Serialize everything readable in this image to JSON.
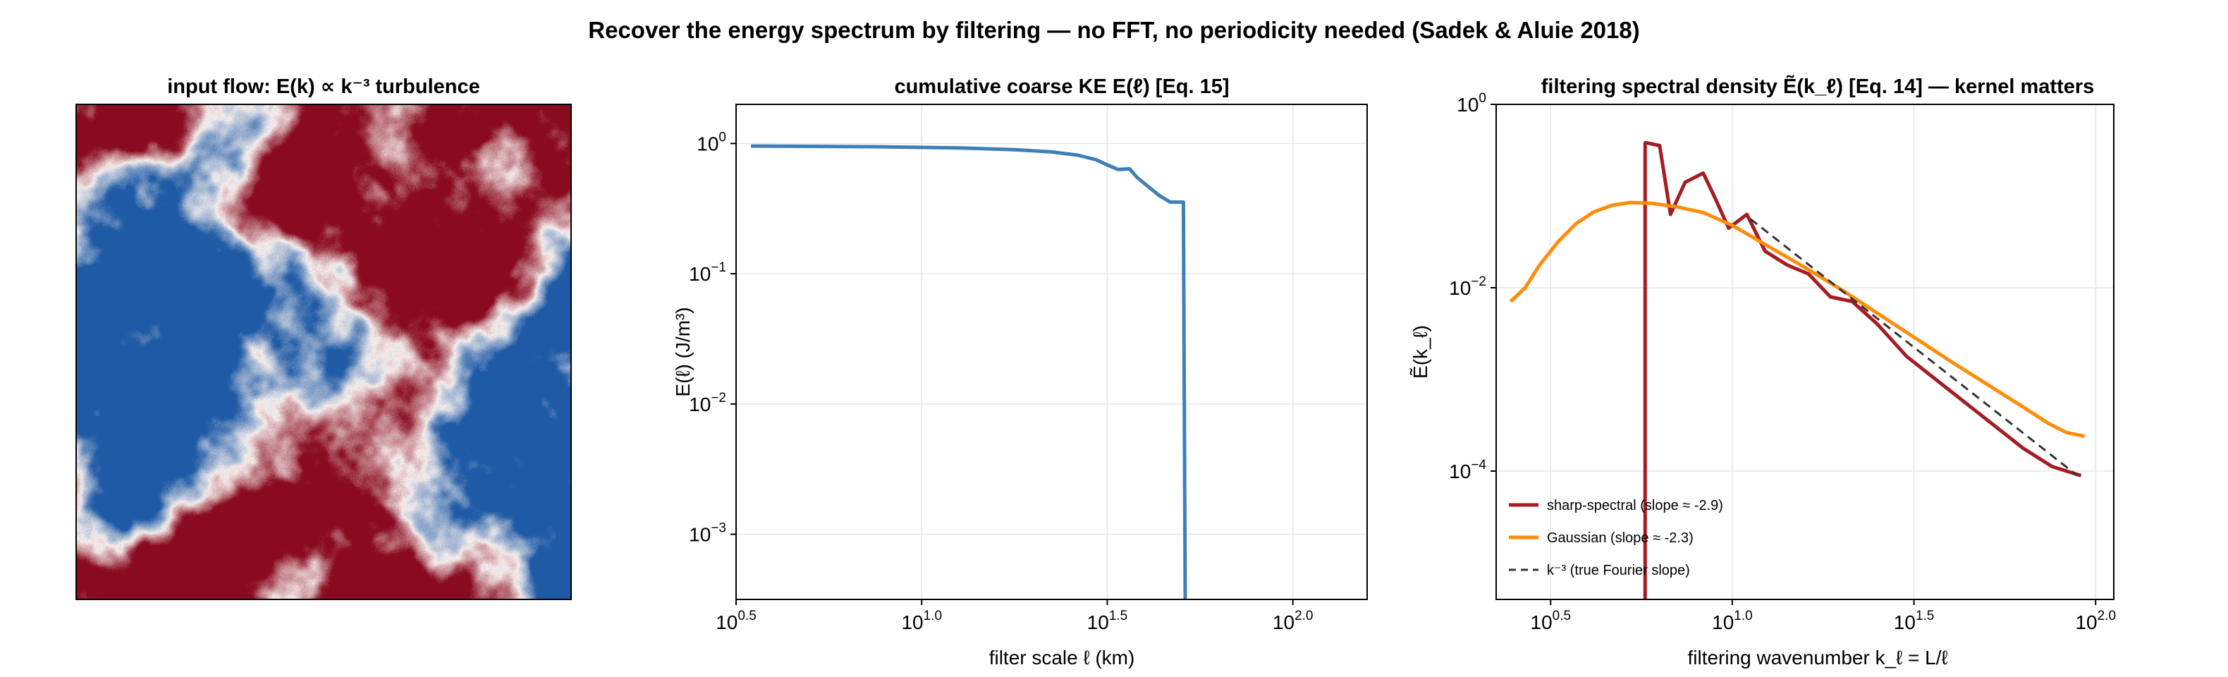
{
  "figure_title": "Recover the energy spectrum by filtering — no FFT, no periodicity needed (Sadek & Aluie 2018)",
  "colors": {
    "background": "#ffffff",
    "grid": "#e6e6e6",
    "axis": "#000000",
    "cumulative": "#3f7fb8",
    "sharp": "#a51c22",
    "gaussian": "#ff8c0a",
    "reference": "#333333",
    "field_red": "#8a0b1f",
    "field_blue": "#1e5aa6",
    "field_white": "#f7f0ee"
  },
  "chart_data": [
    {
      "type": "heatmap",
      "title": "input flow:  E(k) ∝ k⁻³ turbulence",
      "xlabel": "",
      "ylabel": "",
      "colormap": "diverging red-white-blue",
      "description_of_field": "random isotropic field with k^-3 spectrum"
    },
    {
      "type": "line",
      "title": "cumulative coarse KE  E(ℓ)   [Eq. 15]",
      "xlabel": "filter scale  ℓ  (km)",
      "ylabel": "E(ℓ)  (J/m³)",
      "xscale": "log",
      "yscale": "log",
      "xlim": [
        0.5,
        2.2
      ],
      "ylim": [
        -3.5,
        0.3
      ],
      "limits_are_log10": true,
      "xticks": [
        {
          "label_base": "10",
          "label_exp": "0.5",
          "value": 0.5
        },
        {
          "label_base": "10",
          "label_exp": "1.0",
          "value": 1.0
        },
        {
          "label_base": "10",
          "label_exp": "1.5",
          "value": 1.5
        },
        {
          "label_base": "10",
          "label_exp": "2.0",
          "value": 2.0
        }
      ],
      "yticks": [
        {
          "label_base": "10",
          "label_exp": "0",
          "value": 0
        },
        {
          "label_base": "10",
          "label_exp": "−1",
          "value": -1
        },
        {
          "label_base": "10",
          "label_exp": "−2",
          "value": -2
        },
        {
          "label_base": "10",
          "label_exp": "−3",
          "value": -3
        }
      ],
      "grid": true,
      "series": [
        {
          "color": "#3f7fb8",
          "log10_x": [
            0.54,
            0.7,
            0.9,
            1.1,
            1.25,
            1.35,
            1.42,
            1.47,
            1.5,
            1.53,
            1.56,
            1.58,
            1.61,
            1.64,
            1.67,
            1.7,
            1.705,
            1.71
          ],
          "log10_y": [
            -0.02,
            -0.022,
            -0.026,
            -0.034,
            -0.048,
            -0.065,
            -0.09,
            -0.125,
            -0.165,
            -0.2,
            -0.195,
            -0.26,
            -0.33,
            -0.4,
            -0.45,
            -0.45,
            -0.45,
            -3.5
          ]
        }
      ]
    },
    {
      "type": "line",
      "title": "filtering spectral density  Ẽ(k_ℓ)   [Eq. 14] — kernel matters",
      "xlabel": "filtering wavenumber  k_ℓ = L/ℓ",
      "ylabel": "Ẽ(k_ℓ)",
      "xscale": "log",
      "yscale": "log",
      "xlim": [
        0.35,
        2.05
      ],
      "ylim": [
        -5.4,
        0.0
      ],
      "limits_are_log10": true,
      "xticks": [
        {
          "label_base": "10",
          "label_exp": "0.5",
          "value": 0.5
        },
        {
          "label_base": "10",
          "label_exp": "1.0",
          "value": 1.0
        },
        {
          "label_base": "10",
          "label_exp": "1.5",
          "value": 1.5
        },
        {
          "label_base": "10",
          "label_exp": "2.0",
          "value": 2.0
        }
      ],
      "yticks": [
        {
          "label_base": "10",
          "label_exp": "0",
          "value": 0
        },
        {
          "label_base": "10",
          "label_exp": "−2",
          "value": -2
        },
        {
          "label_base": "10",
          "label_exp": "−4",
          "value": -4
        }
      ],
      "grid": true,
      "legend_position": "bottom-left",
      "series": [
        {
          "name": "sharp-spectral  (slope ≈ -2.9)",
          "color": "#a51c22",
          "style": "solid",
          "log10_x": [
            0.76,
            0.76,
            0.765,
            0.8,
            0.83,
            0.87,
            0.92,
            0.95,
            0.99,
            1.04,
            1.09,
            1.15,
            1.21,
            1.27,
            1.33,
            1.4,
            1.48,
            1.56,
            1.64,
            1.72,
            1.8,
            1.88,
            1.96
          ],
          "log10_y": [
            -5.4,
            -0.42,
            -0.42,
            -0.45,
            -1.2,
            -0.85,
            -0.75,
            -1.0,
            -1.35,
            -1.2,
            -1.6,
            -1.75,
            -1.85,
            -2.1,
            -2.15,
            -2.4,
            -2.75,
            -3.0,
            -3.25,
            -3.5,
            -3.75,
            -3.95,
            -4.05
          ]
        },
        {
          "name": "Gaussian  (slope ≈ -2.3)",
          "color": "#ff8c0a",
          "style": "solid",
          "log10_x": [
            0.39,
            0.43,
            0.47,
            0.52,
            0.57,
            0.62,
            0.67,
            0.72,
            0.78,
            0.85,
            0.92,
            1.0,
            1.1,
            1.2,
            1.3,
            1.4,
            1.5,
            1.6,
            1.7,
            1.8,
            1.87,
            1.92,
            1.97
          ],
          "log10_y": [
            -2.15,
            -2.0,
            -1.75,
            -1.5,
            -1.3,
            -1.17,
            -1.1,
            -1.07,
            -1.08,
            -1.12,
            -1.18,
            -1.32,
            -1.55,
            -1.78,
            -2.02,
            -2.28,
            -2.54,
            -2.8,
            -3.05,
            -3.3,
            -3.48,
            -3.58,
            -3.62
          ]
        },
        {
          "name": "k⁻³ (true Fourier slope)",
          "color": "#333333",
          "style": "dashed",
          "log10_x": [
            1.05,
            1.95
          ],
          "log10_y": [
            -1.25,
            -4.05
          ]
        }
      ]
    }
  ]
}
